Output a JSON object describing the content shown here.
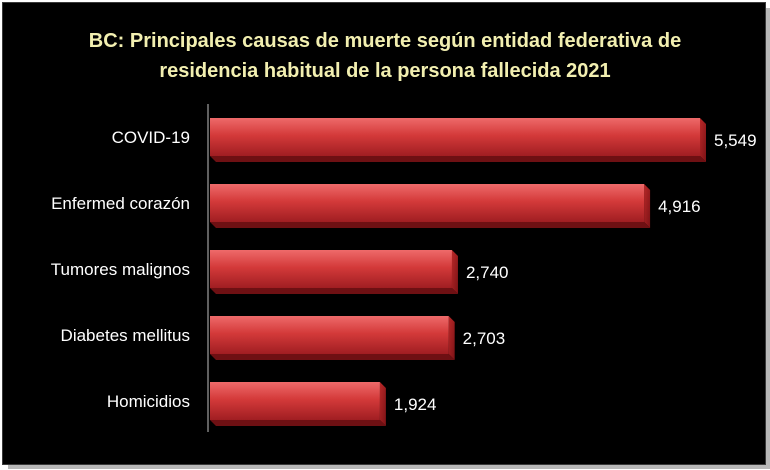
{
  "chart_data": {
    "type": "bar",
    "orientation": "horizontal",
    "title": "BC: Principales causas de muerte según entidad federativa de residencia habitual de la persona fallecida 2021",
    "categories": [
      "COVID-19",
      "Enfermed corazón",
      "Tumores malignos",
      "Diabetes mellitus",
      "Homicidios"
    ],
    "values": [
      5549,
      4916,
      2740,
      2703,
      1924
    ],
    "value_labels": [
      "5,549",
      "4,916",
      "2,740",
      "2,703",
      "1,924"
    ],
    "xlabel": "",
    "ylabel": "",
    "xlim": [
      0,
      5549
    ],
    "grid": false,
    "legend": "none",
    "colors": {
      "background": "#000000",
      "bar": "#c0282b",
      "bar_light": "#ee6a6a",
      "title": "#f2efb0",
      "text": "#ffffff"
    }
  }
}
